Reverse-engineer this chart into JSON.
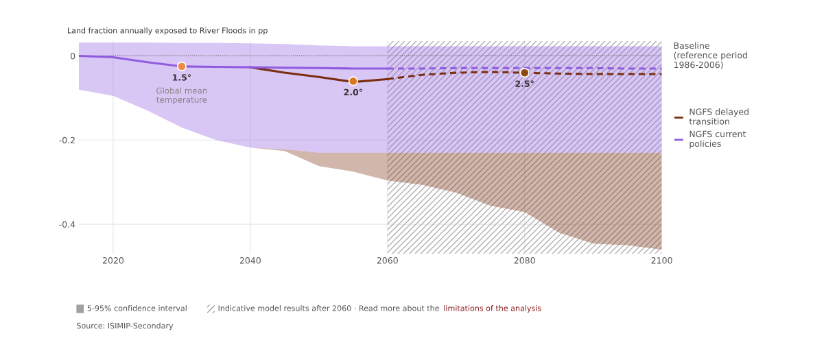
{
  "chart_data": {
    "type": "line",
    "ylabel": "Land fraction annually exposed to River Floods in pp",
    "xlim": [
      2015,
      2100
    ],
    "xticks": [
      2020,
      2040,
      2060,
      2080,
      2100
    ],
    "ylim": [
      -0.47,
      0.035
    ],
    "yticks": [
      0,
      {
        "value": -0.2,
        "label": "-0.2"
      },
      {
        "value": -0.4,
        "label": "-0.4"
      }
    ],
    "grid": true,
    "legend": "top right",
    "series": [
      {
        "name": "NGFS delayed transition",
        "color": "#7b2d10",
        "x": [
          2040,
          2045,
          2050,
          2055,
          2060,
          2065,
          2070,
          2075,
          2080,
          2085,
          2090,
          2095,
          2100
        ],
        "values": [
          -0.027,
          -0.04,
          -0.05,
          -0.062,
          -0.055,
          -0.045,
          -0.04,
          -0.038,
          -0.04,
          -0.042,
          -0.043,
          -0.043,
          -0.043
        ],
        "lower": [
          -0.218,
          -0.226,
          -0.262,
          -0.275,
          -0.296,
          -0.306,
          -0.325,
          -0.356,
          -0.371,
          -0.42,
          -0.446,
          -0.45,
          -0.46
        ],
        "upper": [
          -0.218,
          -0.222,
          -0.23,
          -0.23,
          -0.23,
          -0.23,
          -0.23,
          -0.23,
          -0.23,
          -0.23,
          -0.23,
          -0.23,
          -0.23
        ]
      },
      {
        "name": "NGFS current policies",
        "color": "#8f5ce0",
        "x": [
          2015,
          2020,
          2025,
          2030,
          2035,
          2040,
          2045,
          2050,
          2055,
          2060,
          2065,
          2070,
          2075,
          2080,
          2085,
          2090,
          2095,
          2100
        ],
        "values": [
          0,
          -0.003,
          -0.015,
          -0.025,
          -0.026,
          -0.027,
          -0.028,
          -0.029,
          -0.03,
          -0.03,
          -0.03,
          -0.029,
          -0.029,
          -0.029,
          -0.029,
          -0.029,
          -0.03,
          -0.03
        ],
        "lower": [
          -0.08,
          -0.095,
          -0.13,
          -0.17,
          -0.2,
          -0.218,
          -0.222,
          -0.23,
          -0.23,
          -0.23,
          -0.23,
          -0.23,
          -0.23,
          -0.23,
          -0.23,
          -0.23,
          -0.23,
          -0.23
        ],
        "upper": [
          0.032,
          0.032,
          0.032,
          0.031,
          0.031,
          0.03,
          0.028,
          0.025,
          0.023,
          0.023,
          0.023,
          0.023,
          0.023,
          0.023,
          0.023,
          0.023,
          0.023,
          0.023
        ]
      },
      {
        "type": "scatter",
        "x": [
          2030,
          2055,
          2080
        ],
        "values": [
          -0.025,
          -0.06,
          -0.04
        ],
        "colors": [
          "#f08a4b",
          "#d97a20",
          "#8a4a10"
        ]
      }
    ],
    "ref_lines": [
      {
        "axis": "y",
        "value": 0,
        "label": "Baseline\n(reference period\n1986-2006)",
        "color": "#555555",
        "line_style": "dotted"
      }
    ],
    "bands": [
      {
        "axis": "x",
        "from": 2060,
        "to": 2100
      }
    ],
    "annotations": [
      {
        "text": "1.5°",
        "x": 2030,
        "y": -0.025
      },
      "Global mean\ntemperature",
      {
        "text": "2.0°",
        "x": 2055,
        "y": -0.06
      },
      {
        "text": "2.5°",
        "x": 2080,
        "y": -0.04
      },
      "5-95% confidence interval",
      "Indicative model results after 2060 · Read more about the",
      "limitations of the analysis",
      "Source: ISIMIP-Secondary"
    ]
  }
}
